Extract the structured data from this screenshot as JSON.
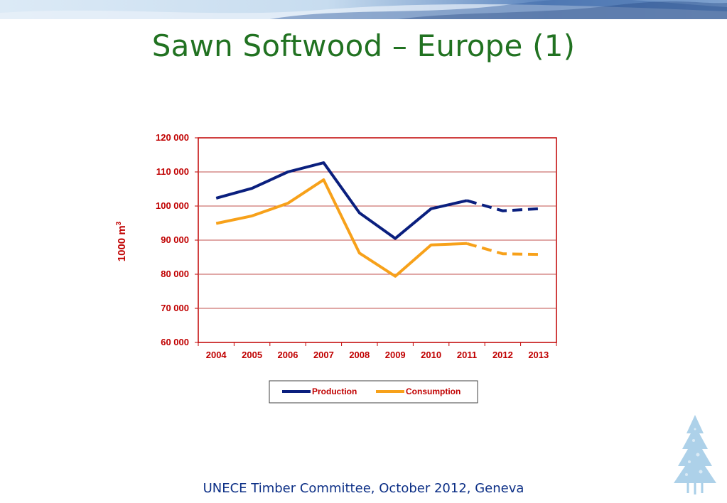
{
  "slide": {
    "title": "Sawn Softwood – Europe (1)",
    "footer": "UNECE Timber Committee, October 2012, Geneva"
  },
  "colors": {
    "title": "#217221",
    "footer": "#0c2f86",
    "axis_text": "#c00000",
    "gridline": "#c0504d",
    "production": "#0a1f7e",
    "consumption": "#f7a11a"
  },
  "chart_data": {
    "type": "line",
    "title": "",
    "xlabel": "",
    "ylabel": "1000 m",
    "ylabel_superscript": "3",
    "categories": [
      "2004",
      "2005",
      "2006",
      "2007",
      "2008",
      "2009",
      "2010",
      "2011",
      "2012",
      "2013"
    ],
    "yticks": [
      "60 000",
      "70 000",
      "80 000",
      "90 000",
      "100 000",
      "110 000",
      "120 000"
    ],
    "ylim": [
      60000,
      120000
    ],
    "grid": true,
    "legend_position": "bottom",
    "forecast_from": "2011",
    "series": [
      {
        "name": "Production",
        "color": "#0a1f7e",
        "values": [
          102300,
          105200,
          110000,
          112700,
          98000,
          90500,
          99200,
          101600,
          98600,
          99200
        ]
      },
      {
        "name": "Consumption",
        "color": "#f7a11a",
        "values": [
          94900,
          97100,
          100800,
          107700,
          86200,
          79400,
          88600,
          89000,
          86000,
          85800
        ]
      }
    ]
  }
}
